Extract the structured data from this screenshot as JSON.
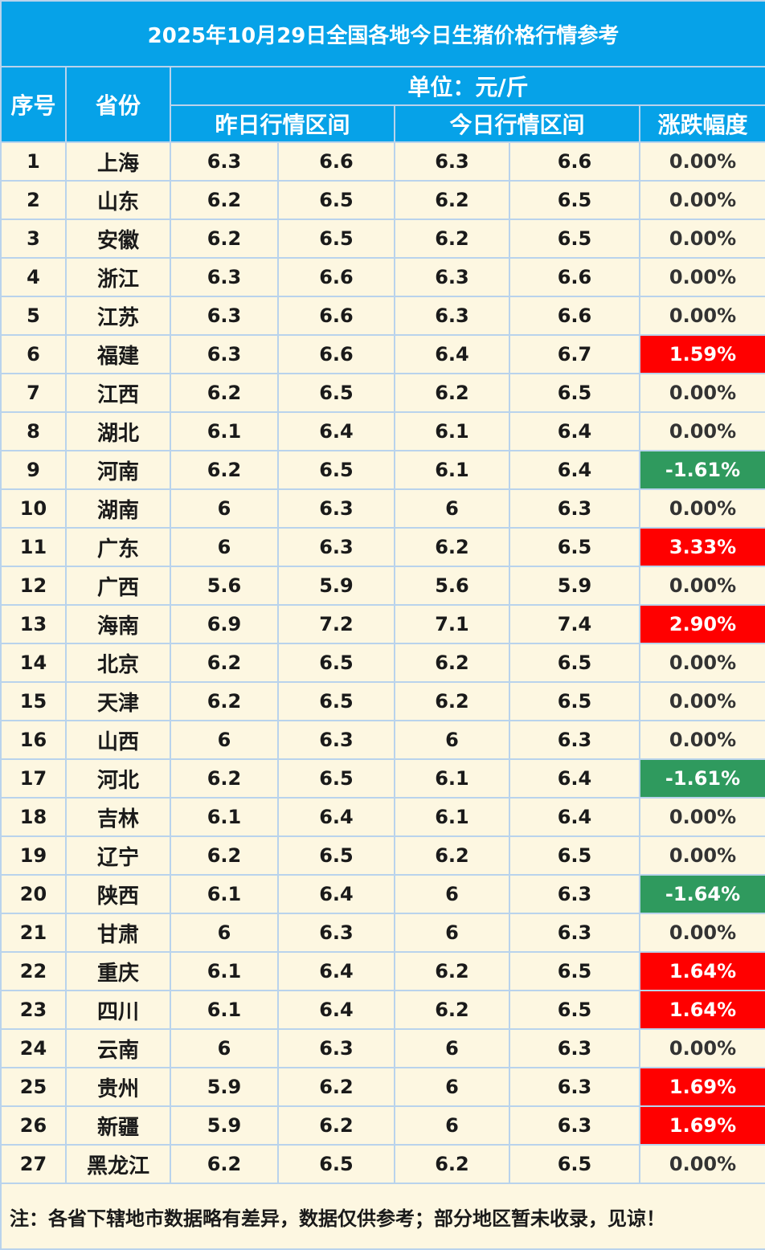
{
  "title": "2025年10月29日全国各地今日生猪价格行情参考",
  "headers": {
    "index": "序号",
    "province": "省份",
    "unit": "单位：元/斤",
    "yesterday_range": "昨日行情区间",
    "today_range": "今日行情区间",
    "change": "涨跌幅度"
  },
  "colors": {
    "header_bg": "#06a2e8",
    "row_bg": "#fdf7e1",
    "up": "#ff0000",
    "down": "#2f9a5e"
  },
  "rows": [
    {
      "index": "1",
      "province": "上海",
      "y_low": "6.3",
      "y_high": "6.6",
      "t_low": "6.3",
      "t_high": "6.6",
      "change": "0.00%",
      "trend": "flat"
    },
    {
      "index": "2",
      "province": "山东",
      "y_low": "6.2",
      "y_high": "6.5",
      "t_low": "6.2",
      "t_high": "6.5",
      "change": "0.00%",
      "trend": "flat"
    },
    {
      "index": "3",
      "province": "安徽",
      "y_low": "6.2",
      "y_high": "6.5",
      "t_low": "6.2",
      "t_high": "6.5",
      "change": "0.00%",
      "trend": "flat"
    },
    {
      "index": "4",
      "province": "浙江",
      "y_low": "6.3",
      "y_high": "6.6",
      "t_low": "6.3",
      "t_high": "6.6",
      "change": "0.00%",
      "trend": "flat"
    },
    {
      "index": "5",
      "province": "江苏",
      "y_low": "6.3",
      "y_high": "6.6",
      "t_low": "6.3",
      "t_high": "6.6",
      "change": "0.00%",
      "trend": "flat"
    },
    {
      "index": "6",
      "province": "福建",
      "y_low": "6.3",
      "y_high": "6.6",
      "t_low": "6.4",
      "t_high": "6.7",
      "change": "1.59%",
      "trend": "up"
    },
    {
      "index": "7",
      "province": "江西",
      "y_low": "6.2",
      "y_high": "6.5",
      "t_low": "6.2",
      "t_high": "6.5",
      "change": "0.00%",
      "trend": "flat"
    },
    {
      "index": "8",
      "province": "湖北",
      "y_low": "6.1",
      "y_high": "6.4",
      "t_low": "6.1",
      "t_high": "6.4",
      "change": "0.00%",
      "trend": "flat"
    },
    {
      "index": "9",
      "province": "河南",
      "y_low": "6.2",
      "y_high": "6.5",
      "t_low": "6.1",
      "t_high": "6.4",
      "change": "-1.61%",
      "trend": "down"
    },
    {
      "index": "10",
      "province": "湖南",
      "y_low": "6",
      "y_high": "6.3",
      "t_low": "6",
      "t_high": "6.3",
      "change": "0.00%",
      "trend": "flat"
    },
    {
      "index": "11",
      "province": "广东",
      "y_low": "6",
      "y_high": "6.3",
      "t_low": "6.2",
      "t_high": "6.5",
      "change": "3.33%",
      "trend": "up"
    },
    {
      "index": "12",
      "province": "广西",
      "y_low": "5.6",
      "y_high": "5.9",
      "t_low": "5.6",
      "t_high": "5.9",
      "change": "0.00%",
      "trend": "flat"
    },
    {
      "index": "13",
      "province": "海南",
      "y_low": "6.9",
      "y_high": "7.2",
      "t_low": "7.1",
      "t_high": "7.4",
      "change": "2.90%",
      "trend": "up"
    },
    {
      "index": "14",
      "province": "北京",
      "y_low": "6.2",
      "y_high": "6.5",
      "t_low": "6.2",
      "t_high": "6.5",
      "change": "0.00%",
      "trend": "flat"
    },
    {
      "index": "15",
      "province": "天津",
      "y_low": "6.2",
      "y_high": "6.5",
      "t_low": "6.2",
      "t_high": "6.5",
      "change": "0.00%",
      "trend": "flat"
    },
    {
      "index": "16",
      "province": "山西",
      "y_low": "6",
      "y_high": "6.3",
      "t_low": "6",
      "t_high": "6.3",
      "change": "0.00%",
      "trend": "flat"
    },
    {
      "index": "17",
      "province": "河北",
      "y_low": "6.2",
      "y_high": "6.5",
      "t_low": "6.1",
      "t_high": "6.4",
      "change": "-1.61%",
      "trend": "down"
    },
    {
      "index": "18",
      "province": "吉林",
      "y_low": "6.1",
      "y_high": "6.4",
      "t_low": "6.1",
      "t_high": "6.4",
      "change": "0.00%",
      "trend": "flat"
    },
    {
      "index": "19",
      "province": "辽宁",
      "y_low": "6.2",
      "y_high": "6.5",
      "t_low": "6.2",
      "t_high": "6.5",
      "change": "0.00%",
      "trend": "flat"
    },
    {
      "index": "20",
      "province": "陕西",
      "y_low": "6.1",
      "y_high": "6.4",
      "t_low": "6",
      "t_high": "6.3",
      "change": "-1.64%",
      "trend": "down"
    },
    {
      "index": "21",
      "province": "甘肃",
      "y_low": "6",
      "y_high": "6.3",
      "t_low": "6",
      "t_high": "6.3",
      "change": "0.00%",
      "trend": "flat"
    },
    {
      "index": "22",
      "province": "重庆",
      "y_low": "6.1",
      "y_high": "6.4",
      "t_low": "6.2",
      "t_high": "6.5",
      "change": "1.64%",
      "trend": "up"
    },
    {
      "index": "23",
      "province": "四川",
      "y_low": "6.1",
      "y_high": "6.4",
      "t_low": "6.2",
      "t_high": "6.5",
      "change": "1.64%",
      "trend": "up"
    },
    {
      "index": "24",
      "province": "云南",
      "y_low": "6",
      "y_high": "6.3",
      "t_low": "6",
      "t_high": "6.3",
      "change": "0.00%",
      "trend": "flat"
    },
    {
      "index": "25",
      "province": "贵州",
      "y_low": "5.9",
      "y_high": "6.2",
      "t_low": "6",
      "t_high": "6.3",
      "change": "1.69%",
      "trend": "up"
    },
    {
      "index": "26",
      "province": "新疆",
      "y_low": "5.9",
      "y_high": "6.2",
      "t_low": "6",
      "t_high": "6.3",
      "change": "1.69%",
      "trend": "up"
    },
    {
      "index": "27",
      "province": "黑龙江",
      "y_low": "6.2",
      "y_high": "6.5",
      "t_low": "6.2",
      "t_high": "6.5",
      "change": "0.00%",
      "trend": "flat"
    }
  ],
  "note": "注：各省下辖地市数据略有差异，数据仅供参考；部分地区暂未收录，见谅！"
}
